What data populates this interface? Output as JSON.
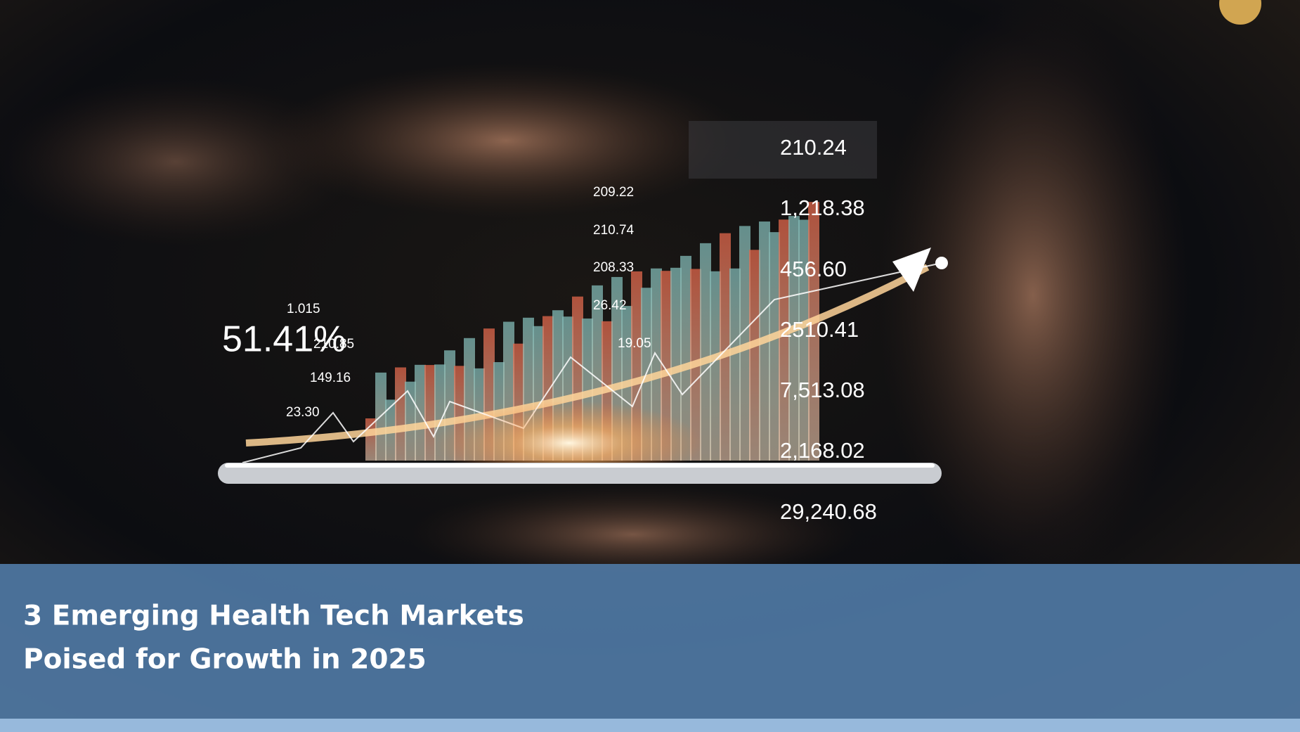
{
  "image": {
    "figures": [
      "210.24",
      "1,218.38",
      "456.60",
      "2510.41",
      "7,513.08",
      "2,168.02",
      "29,240.68",
      "51.41%",
      "1.015",
      "210.85",
      "149.16",
      "23.30",
      "209.22",
      "210.74",
      "208.33",
      "26.42",
      "19.05"
    ]
  },
  "banner": {
    "title_lines": [
      "3 Emerging Health Tech Markets",
      "Poised for Growth in 2025"
    ]
  }
}
